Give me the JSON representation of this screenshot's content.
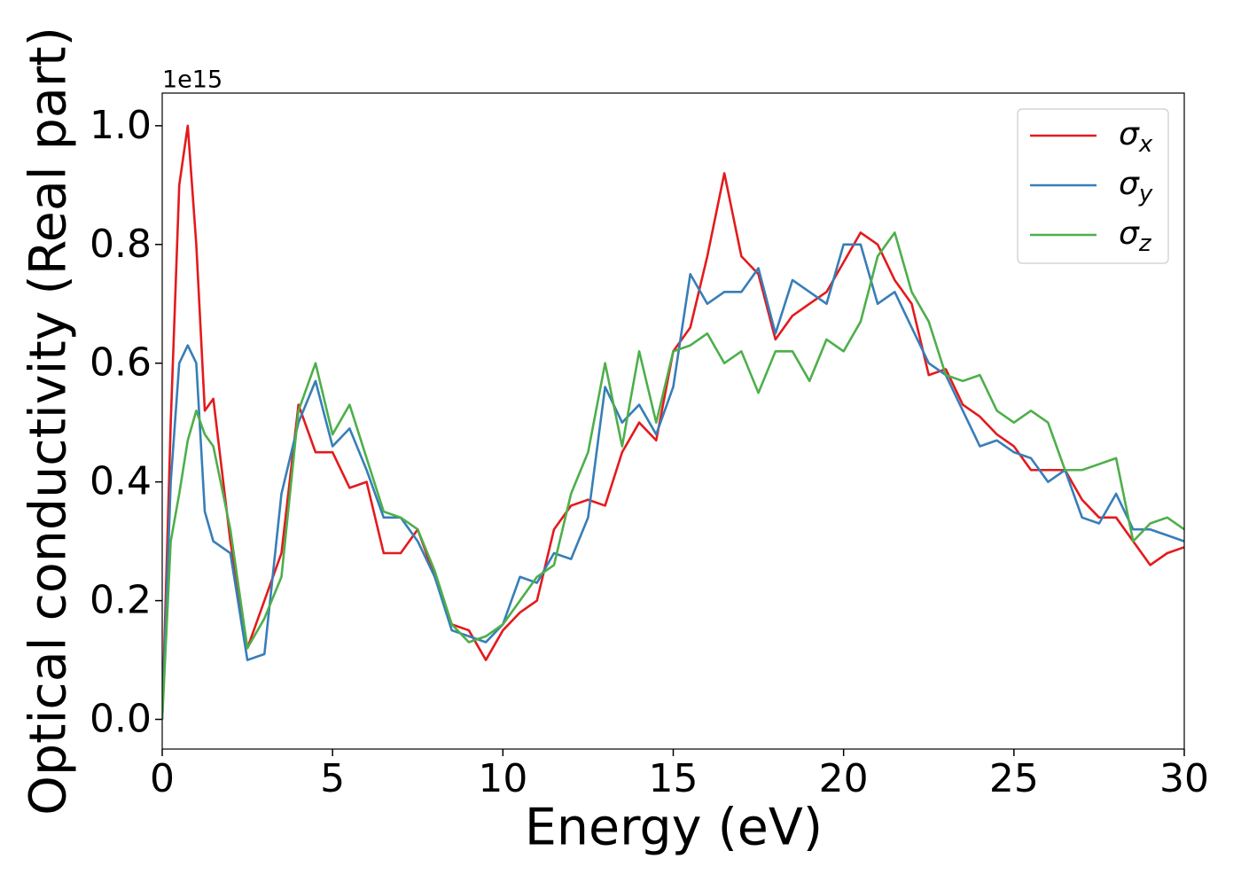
{
  "chart_data": {
    "type": "line",
    "x_label": "Energy (eV)",
    "y_label": "Optical conductivity (Real part)",
    "y_offset_label": "1e15",
    "x": [
      0,
      0.25,
      0.5,
      0.75,
      1,
      1.25,
      1.5,
      2,
      2.5,
      3,
      3.5,
      4,
      4.5,
      5,
      5.5,
      6,
      6.5,
      7,
      7.5,
      8,
      8.5,
      9,
      9.5,
      10,
      10.5,
      11,
      11.5,
      12,
      12.5,
      13,
      13.5,
      14,
      14.5,
      15,
      15.5,
      16,
      16.5,
      17,
      17.5,
      18,
      18.5,
      19,
      19.5,
      20,
      20.5,
      21,
      21.5,
      22,
      22.5,
      23,
      23.5,
      24,
      24.5,
      25,
      25.5,
      26,
      26.5,
      27,
      27.5,
      28,
      28.5,
      29,
      29.5,
      30
    ],
    "series": [
      {
        "name": "σx",
        "color": "#e41a1c",
        "values": [
          0,
          0.5,
          0.9,
          1.0,
          0.8,
          0.52,
          0.54,
          0.3,
          0.12,
          0.2,
          0.28,
          0.53,
          0.45,
          0.45,
          0.39,
          0.4,
          0.28,
          0.28,
          0.32,
          0.24,
          0.16,
          0.15,
          0.1,
          0.15,
          0.18,
          0.2,
          0.32,
          0.36,
          0.37,
          0.36,
          0.45,
          0.5,
          0.47,
          0.62,
          0.66,
          0.78,
          0.92,
          0.78,
          0.75,
          0.64,
          0.68,
          0.7,
          0.72,
          0.77,
          0.82,
          0.8,
          0.74,
          0.7,
          0.58,
          0.59,
          0.53,
          0.51,
          0.48,
          0.46,
          0.42,
          0.42,
          0.42,
          0.37,
          0.34,
          0.34,
          0.3,
          0.26,
          0.28,
          0.29
        ]
      },
      {
        "name": "σy",
        "color": "#377eb8",
        "values": [
          0,
          0.4,
          0.6,
          0.63,
          0.6,
          0.35,
          0.3,
          0.28,
          0.1,
          0.11,
          0.38,
          0.5,
          0.57,
          0.46,
          0.49,
          0.42,
          0.34,
          0.34,
          0.3,
          0.24,
          0.15,
          0.14,
          0.13,
          0.16,
          0.24,
          0.23,
          0.28,
          0.27,
          0.34,
          0.56,
          0.5,
          0.53,
          0.48,
          0.56,
          0.75,
          0.7,
          0.72,
          0.72,
          0.76,
          0.65,
          0.74,
          0.72,
          0.7,
          0.8,
          0.8,
          0.7,
          0.72,
          0.66,
          0.6,
          0.58,
          0.52,
          0.46,
          0.47,
          0.45,
          0.44,
          0.4,
          0.42,
          0.34,
          0.33,
          0.38,
          0.32,
          0.32,
          0.31,
          0.3
        ]
      },
      {
        "name": "σz",
        "color": "#4daf4a",
        "values": [
          0,
          0.3,
          0.38,
          0.47,
          0.52,
          0.48,
          0.46,
          0.32,
          0.12,
          0.17,
          0.24,
          0.52,
          0.6,
          0.48,
          0.53,
          0.44,
          0.35,
          0.34,
          0.32,
          0.25,
          0.16,
          0.13,
          0.14,
          0.16,
          0.2,
          0.24,
          0.26,
          0.38,
          0.45,
          0.6,
          0.46,
          0.62,
          0.5,
          0.62,
          0.63,
          0.65,
          0.6,
          0.62,
          0.55,
          0.62,
          0.62,
          0.57,
          0.64,
          0.62,
          0.67,
          0.78,
          0.82,
          0.72,
          0.67,
          0.58,
          0.57,
          0.58,
          0.52,
          0.5,
          0.52,
          0.5,
          0.42,
          0.42,
          0.43,
          0.44,
          0.3,
          0.33,
          0.34,
          0.32
        ]
      }
    ],
    "xlim": [
      0,
      30
    ],
    "ylim": [
      -0.05,
      1.055
    ],
    "xticks": [
      0,
      5,
      10,
      15,
      20,
      25,
      30
    ],
    "yticks": [
      {
        "value": 0,
        "label": "0.0"
      },
      {
        "value": 0.2,
        "label": "0.2"
      },
      {
        "value": 0.4,
        "label": "0.4"
      },
      {
        "value": 0.6,
        "label": "0.6"
      },
      {
        "value": 0.8,
        "label": "0.8"
      },
      {
        "value": 1.0,
        "label": "1.0"
      }
    ],
    "grid": false,
    "legend": "upper right"
  }
}
